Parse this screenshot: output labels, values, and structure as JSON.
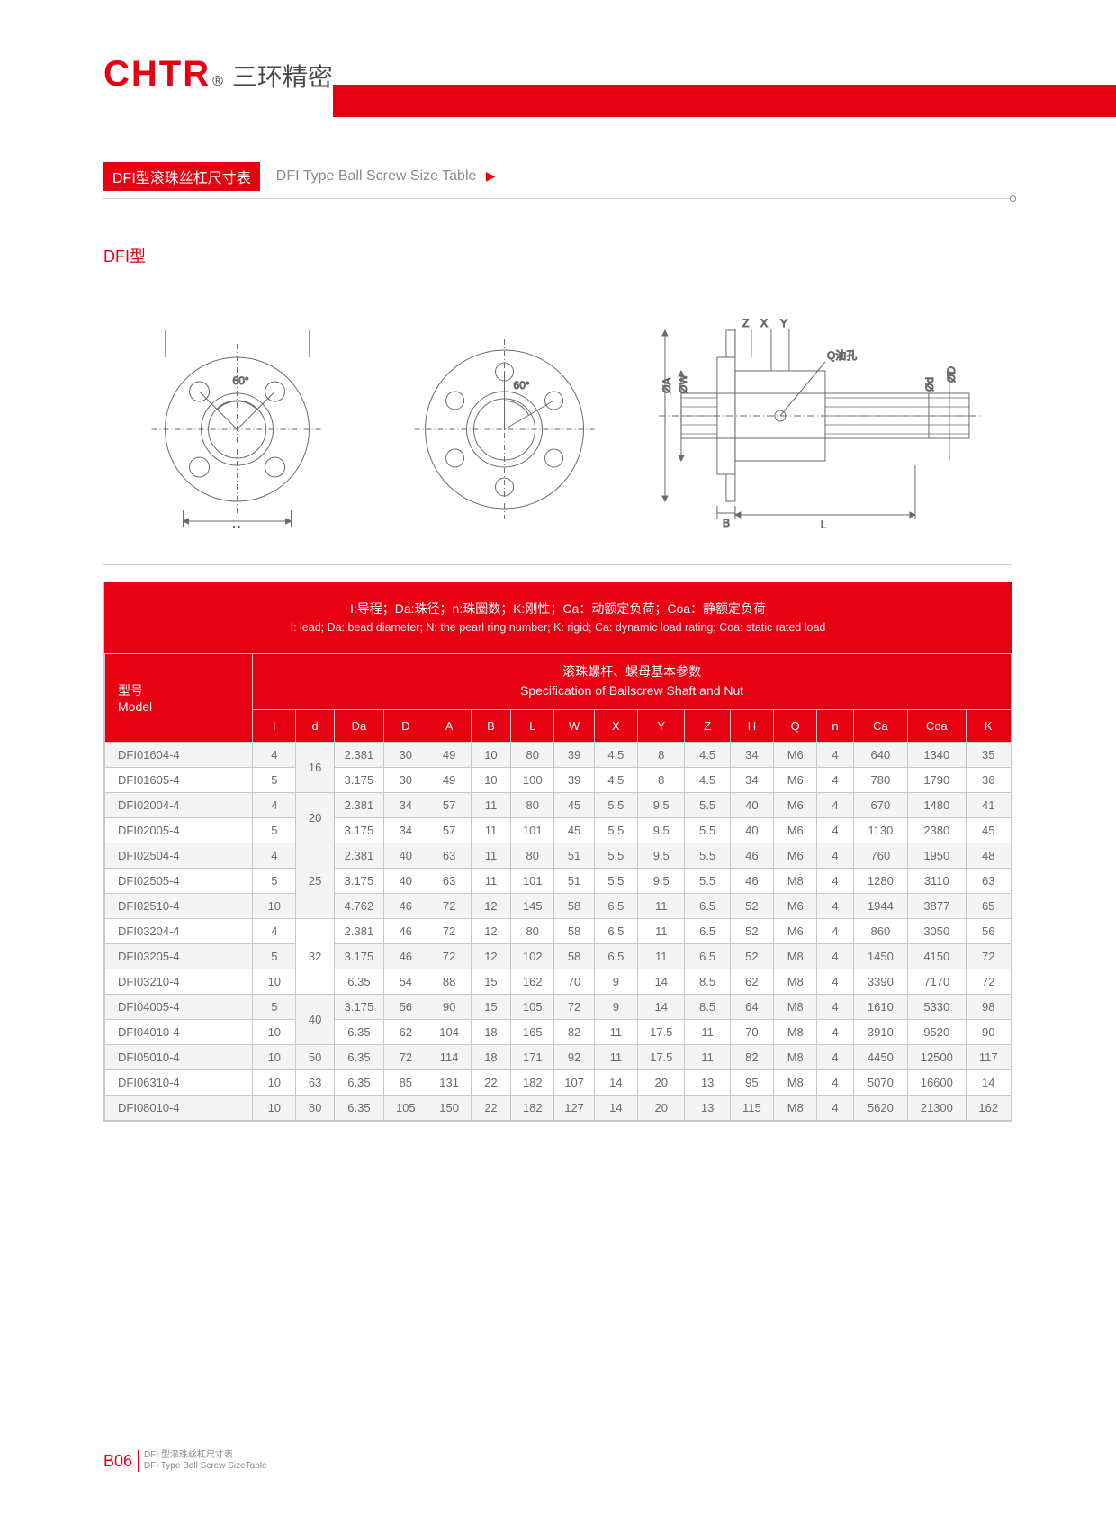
{
  "logo": {
    "brand": "CHTR",
    "reg": "®",
    "cn": "三环精密"
  },
  "title": {
    "badge": "DFI型滚珠丝杠尺寸表",
    "en": "DFI Type Ball Screw Size Table"
  },
  "subtype": "DFI型",
  "diagram": {
    "angle": "60°",
    "dim_H": "H",
    "dim_B": "B",
    "dim_L": "L",
    "dim_A": "ØA",
    "dim_W": "ØW",
    "dim_d": "Ød",
    "dim_D": "ØD",
    "dim_Z": "Z",
    "dim_X": "X",
    "dim_Y": "Y",
    "oil": "Q油孔"
  },
  "legend": {
    "cn": "I:导程；Da:珠径；n:珠圈数；K:刚性；Ca：动额定负荷；Coa：静额定负荷",
    "en": "I: lead; Da: bead diameter; N: the pearl ring number; K: rigid; Ca: dynamic load rating; Coa: static rated load"
  },
  "table": {
    "model_label": {
      "cn": "型号",
      "en": "Model"
    },
    "spec_label": {
      "cn": "滚珠螺杆、螺母基本参数",
      "en": "Specification of Ballscrew Shaft and Nut"
    },
    "columns": [
      "I",
      "d",
      "Da",
      "D",
      "A",
      "B",
      "L",
      "W",
      "X",
      "Y",
      "Z",
      "H",
      "Q",
      "n",
      "Ca",
      "Coa",
      "K"
    ],
    "col_widths_pct": [
      4.8,
      4.2,
      5.5,
      4.8,
      4.8,
      4.4,
      4.8,
      4.4,
      4.8,
      5.2,
      5.0,
      4.8,
      4.8,
      4.0,
      6.0,
      6.4,
      5.0
    ],
    "d_groups": [
      {
        "value": "16",
        "span": 2
      },
      {
        "value": "20",
        "span": 2
      },
      {
        "value": "25",
        "span": 3
      },
      {
        "value": "32",
        "span": 3
      },
      {
        "value": "40",
        "span": 2
      },
      {
        "value": "50",
        "span": 1
      },
      {
        "value": "63",
        "span": 1
      },
      {
        "value": "80",
        "span": 1
      }
    ],
    "rows": [
      {
        "model": "DFI01604-4",
        "v": [
          "4",
          "2.381",
          "30",
          "49",
          "10",
          "80",
          "39",
          "4.5",
          "8",
          "4.5",
          "34",
          "M6",
          "4",
          "640",
          "1340",
          "35"
        ]
      },
      {
        "model": "DFI01605-4",
        "v": [
          "5",
          "3.175",
          "30",
          "49",
          "10",
          "100",
          "39",
          "4.5",
          "8",
          "4.5",
          "34",
          "M6",
          "4",
          "780",
          "1790",
          "36"
        ]
      },
      {
        "model": "DFI02004-4",
        "v": [
          "4",
          "2.381",
          "34",
          "57",
          "11",
          "80",
          "45",
          "5.5",
          "9.5",
          "5.5",
          "40",
          "M6",
          "4",
          "670",
          "1480",
          "41"
        ]
      },
      {
        "model": "DFI02005-4",
        "v": [
          "5",
          "3.175",
          "34",
          "57",
          "11",
          "101",
          "45",
          "5.5",
          "9.5",
          "5.5",
          "40",
          "M6",
          "4",
          "1130",
          "2380",
          "45"
        ]
      },
      {
        "model": "DFI02504-4",
        "v": [
          "4",
          "2.381",
          "40",
          "63",
          "11",
          "80",
          "51",
          "5.5",
          "9.5",
          "5.5",
          "46",
          "M6",
          "4",
          "760",
          "1950",
          "48"
        ]
      },
      {
        "model": "DFI02505-4",
        "v": [
          "5",
          "3.175",
          "40",
          "63",
          "11",
          "101",
          "51",
          "5.5",
          "9.5",
          "5.5",
          "46",
          "M8",
          "4",
          "1280",
          "3110",
          "63"
        ]
      },
      {
        "model": "DFI02510-4",
        "v": [
          "10",
          "4.762",
          "46",
          "72",
          "12",
          "145",
          "58",
          "6.5",
          "11",
          "6.5",
          "52",
          "M6",
          "4",
          "1944",
          "3877",
          "65"
        ]
      },
      {
        "model": "DFI03204-4",
        "v": [
          "4",
          "2.381",
          "46",
          "72",
          "12",
          "80",
          "58",
          "6.5",
          "11",
          "6.5",
          "52",
          "M6",
          "4",
          "860",
          "3050",
          "56"
        ]
      },
      {
        "model": "DFI03205-4",
        "v": [
          "5",
          "3.175",
          "46",
          "72",
          "12",
          "102",
          "58",
          "6.5",
          "11",
          "6.5",
          "52",
          "M8",
          "4",
          "1450",
          "4150",
          "72"
        ]
      },
      {
        "model": "DFI03210-4",
        "v": [
          "10",
          "6.35",
          "54",
          "88",
          "15",
          "162",
          "70",
          "9",
          "14",
          "8.5",
          "62",
          "M8",
          "4",
          "3390",
          "7170",
          "72"
        ]
      },
      {
        "model": "DFI04005-4",
        "v": [
          "5",
          "3.175",
          "56",
          "90",
          "15",
          "105",
          "72",
          "9",
          "14",
          "8.5",
          "64",
          "M8",
          "4",
          "1610",
          "5330",
          "98"
        ]
      },
      {
        "model": "DFI04010-4",
        "v": [
          "10",
          "6.35",
          "62",
          "104",
          "18",
          "165",
          "82",
          "11",
          "17.5",
          "11",
          "70",
          "M8",
          "4",
          "3910",
          "9520",
          "90"
        ]
      },
      {
        "model": "DFI05010-4",
        "v": [
          "10",
          "6.35",
          "72",
          "114",
          "18",
          "171",
          "92",
          "11",
          "17.5",
          "11",
          "82",
          "M8",
          "4",
          "4450",
          "12500",
          "117"
        ]
      },
      {
        "model": "DFI06310-4",
        "v": [
          "10",
          "6.35",
          "85",
          "131",
          "22",
          "182",
          "107",
          "14",
          "20",
          "13",
          "95",
          "M8",
          "4",
          "5070",
          "16600",
          "14"
        ]
      },
      {
        "model": "DFI08010-4",
        "v": [
          "10",
          "6.35",
          "105",
          "150",
          "22",
          "182",
          "127",
          "14",
          "20",
          "13",
          "115",
          "M8",
          "4",
          "5620",
          "21300",
          "162"
        ]
      }
    ]
  },
  "footer": {
    "page": "B06",
    "cn": "DFI 型滚珠丝杠尺寸表",
    "en": "DFI Type Ball Screw SizeTable"
  },
  "colors": {
    "accent": "#e60012",
    "border": "#c8c8c8",
    "text": "#6a6a6a",
    "alt_row": "#f4f4f4"
  }
}
